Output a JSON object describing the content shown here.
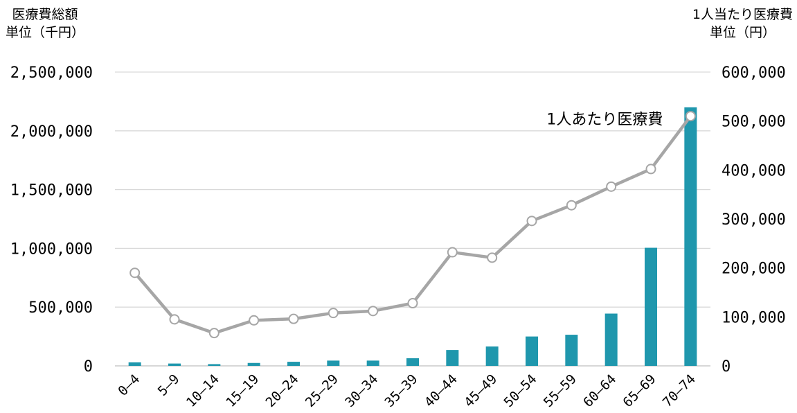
{
  "left_axis_title": {
    "line1": "医療費総額",
    "line2": "単位（千円）"
  },
  "right_axis_title": {
    "line1": "1人当たり医療費",
    "line2": "単位（円）"
  },
  "colors": {
    "bar": "#1f97ad",
    "line": "#a6a6a6",
    "grid": "#d9d9d9",
    "marker_fill": "#ffffff"
  },
  "chart_data": {
    "type": "bar",
    "categories": [
      "0–4",
      "5–9",
      "10–14",
      "15–19",
      "20–24",
      "25–29",
      "30–34",
      "35–39",
      "40–44",
      "45–49",
      "50–54",
      "55–59",
      "60–64",
      "65–69",
      "70–74"
    ],
    "series": [
      {
        "type": "bar",
        "axis": "left",
        "values": [
          30000,
          20000,
          15000,
          25000,
          35000,
          45000,
          45000,
          65000,
          135000,
          165000,
          250000,
          265000,
          445000,
          1005000,
          2200000
        ]
      },
      {
        "type": "line",
        "axis": "right",
        "name": "1人あたり医療費",
        "values": [
          190000,
          95000,
          67000,
          93000,
          96000,
          108000,
          112000,
          128000,
          232000,
          221000,
          296000,
          328000,
          366000,
          402000,
          510000
        ]
      }
    ],
    "y_left": {
      "min": 0,
      "max": 2500000,
      "ticks": [
        "0",
        "500,000",
        "1,000,000",
        "1,500,000",
        "2,000,000",
        "2,500,000"
      ]
    },
    "y_right": {
      "min": 0,
      "max": 600000,
      "ticks": [
        "0",
        "100,000",
        "200,000",
        "300,000",
        "400,000",
        "500,000",
        "600,000"
      ]
    },
    "grid": true
  }
}
